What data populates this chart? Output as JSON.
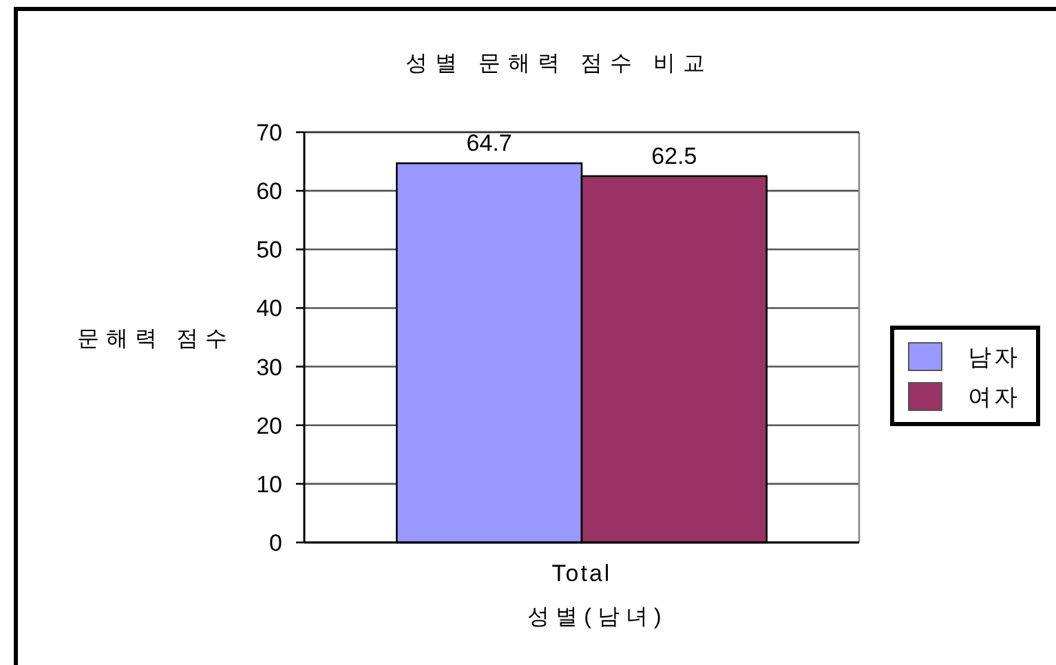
{
  "chart_data": {
    "type": "bar",
    "title": "성별 문해력 점수 비교",
    "ylabel": "문해력 점수",
    "xlabel": "성별(남녀)",
    "categories": [
      "Total"
    ],
    "series": [
      {
        "name": "남자",
        "color": "#9999ff",
        "values": [
          64.7
        ]
      },
      {
        "name": "여자",
        "color": "#993366",
        "values": [
          62.5
        ]
      }
    ],
    "ylim": [
      0,
      70
    ],
    "yticks": [
      0,
      10,
      20,
      30,
      40,
      50,
      60,
      70
    ],
    "grid": "y",
    "legend": "right",
    "data_labels": true
  }
}
